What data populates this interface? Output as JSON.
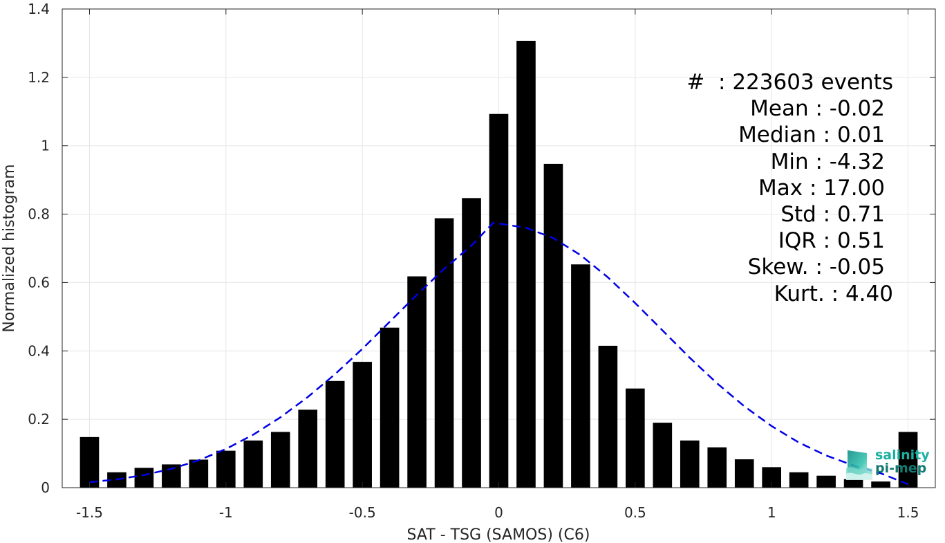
{
  "chart_data": {
    "type": "bar",
    "title": "",
    "xlabel": "SAT - TSG (SAMOS) (C6)",
    "ylabel": "Normalized histogram",
    "xlim": [
      -1.6,
      1.6
    ],
    "ylim": [
      0,
      1.4
    ],
    "xticks": [
      -1.5,
      -1,
      -0.5,
      0,
      0.5,
      1,
      1.5
    ],
    "xtick_labels": [
      "-1.5",
      "-1",
      "-0.5",
      "0",
      "0.5",
      "1",
      "1.5"
    ],
    "yticks": [
      0,
      0.2,
      0.4,
      0.6,
      0.8,
      1,
      1.2,
      1.4
    ],
    "ytick_labels": [
      "0",
      "0.2",
      "0.4",
      "0.6",
      "0.8",
      "1",
      "1.2",
      "1.4"
    ],
    "grid": true,
    "bin_width": 0.1,
    "x": [
      -1.5,
      -1.4,
      -1.3,
      -1.2,
      -1.1,
      -1.0,
      -0.9,
      -0.8,
      -0.7,
      -0.6,
      -0.5,
      -0.4,
      -0.3,
      -0.2,
      -0.1,
      0.0,
      0.1,
      0.2,
      0.3,
      0.4,
      0.5,
      0.6,
      0.7,
      0.8,
      0.9,
      1.0,
      1.1,
      1.2,
      1.3,
      1.4,
      1.5
    ],
    "values": [
      0.148,
      0.045,
      0.058,
      0.068,
      0.082,
      0.108,
      0.138,
      0.163,
      0.228,
      0.312,
      0.368,
      0.468,
      0.618,
      0.788,
      0.847,
      1.093,
      1.307,
      0.947,
      0.653,
      0.415,
      0.29,
      0.19,
      0.138,
      0.118,
      0.083,
      0.06,
      0.045,
      0.035,
      0.025,
      0.018,
      0.163
    ],
    "bar_color": "#000000",
    "fit_curve": {
      "style": "dashed",
      "color": "#0000e6",
      "x": [
        -1.5,
        -1.4,
        -1.3,
        -1.2,
        -1.1,
        -1.0,
        -0.9,
        -0.8,
        -0.7,
        -0.6,
        -0.5,
        -0.4,
        -0.3,
        -0.2,
        -0.1,
        -0.02,
        0.1,
        0.2,
        0.3,
        0.4,
        0.5,
        0.6,
        0.7,
        0.8,
        0.9,
        1.0,
        1.1,
        1.2,
        1.3,
        1.4,
        1.5
      ],
      "y": [
        0.016,
        0.024,
        0.037,
        0.055,
        0.08,
        0.113,
        0.155,
        0.206,
        0.265,
        0.332,
        0.406,
        0.485,
        0.564,
        0.64,
        0.708,
        0.775,
        0.76,
        0.73,
        0.68,
        0.615,
        0.54,
        0.46,
        0.38,
        0.305,
        0.238,
        0.18,
        0.132,
        0.094,
        0.065,
        0.042,
        0.01
      ]
    }
  },
  "stats": {
    "events": "#  : 223603 events",
    "mean": "Mean : -0.02",
    "median": "Median : 0.01",
    "min": "Min : -4.32",
    "max": "Max : 17.00",
    "std": "Std : 0.71",
    "iqr": "IQR : 0.51",
    "skew": "Skew. : -0.05",
    "kurt": "Kurt. : 4.40"
  },
  "logo": {
    "line1": "salinity",
    "line2": "pi-mep",
    "colors": [
      "#1bb0a0",
      "#137a72"
    ]
  }
}
